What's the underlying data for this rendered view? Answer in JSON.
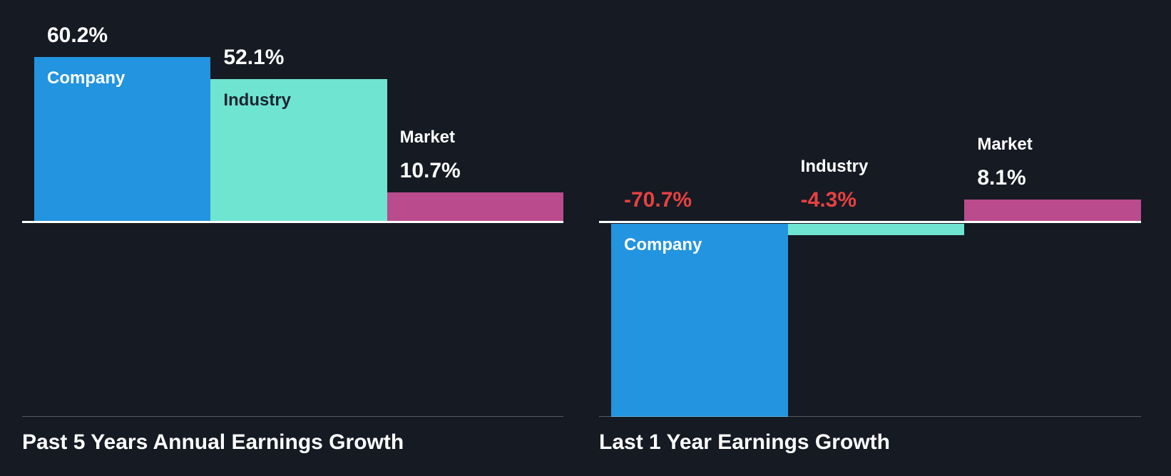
{
  "page": {
    "background": "#151a23"
  },
  "colors": {
    "company_bar": "#2394df",
    "industry_bar": "#6fe4d0",
    "market_bar": "#ba4b8c",
    "negative_value_label": "#e64141",
    "positive_value_label": "#ffffff",
    "baseline": "#ffffff",
    "divider": "rgba(255,255,255,0.28)",
    "title_text": "#ffffff"
  },
  "chart_data": [
    {
      "type": "bar",
      "title": "Past 5 Years Annual Earnings Growth",
      "categories": [
        "Company",
        "Industry",
        "Market"
      ],
      "values": [
        60.2,
        52.1,
        10.7
      ],
      "value_labels": [
        "60.2%",
        "52.1%",
        "10.7%"
      ],
      "bar_colors": [
        "#2394df",
        "#6fe4d0",
        "#ba4b8c"
      ],
      "category_label_colors": [
        "#ffffff",
        "#1b2430",
        "#ffffff"
      ],
      "value_label_colors": [
        "#ffffff",
        "#ffffff",
        "#ffffff"
      ],
      "ylim": [
        -75,
        65
      ],
      "baseline_value": 0,
      "grid": false,
      "legend": "none"
    },
    {
      "type": "bar",
      "title": "Last 1 Year Earnings Growth",
      "categories": [
        "Company",
        "Industry",
        "Market"
      ],
      "values": [
        -70.7,
        -4.3,
        8.1
      ],
      "value_labels": [
        "-70.7%",
        "-4.3%",
        "8.1%"
      ],
      "bar_colors": [
        "#2394df",
        "#6fe4d0",
        "#ba4b8c"
      ],
      "category_label_colors": [
        "#ffffff",
        "#1b2430",
        "#ffffff"
      ],
      "value_label_colors": [
        "#e64141",
        "#e64141",
        "#ffffff"
      ],
      "ylim": [
        -75,
        65
      ],
      "baseline_value": 0,
      "grid": false,
      "legend": "none"
    }
  ]
}
